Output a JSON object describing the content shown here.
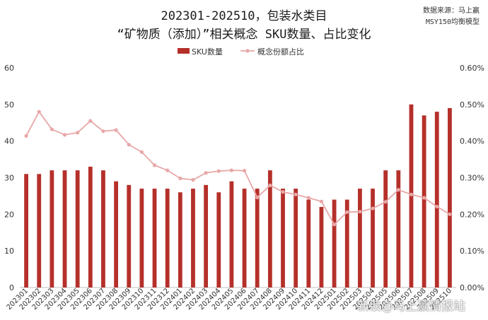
{
  "header": {
    "title_line1": "202301-202510，包装水类目",
    "title_line2": "“矿物质（添加）”相关概念 SKU数量、占比变化",
    "source_line1": "数据来源：马上赢",
    "source_line2": "MSY150均衡模型"
  },
  "watermark": "新浪@马上赢情报站",
  "chart_data": {
    "type": "bar",
    "categories": [
      "202301",
      "202302",
      "202303",
      "202304",
      "202305",
      "202306",
      "202307",
      "202308",
      "202309",
      "202310",
      "202311",
      "202312",
      "202401",
      "202402",
      "202403",
      "202404",
      "202405",
      "202406",
      "202407",
      "202408",
      "202409",
      "202410",
      "202411",
      "202412",
      "202501",
      "202502",
      "202503",
      "202504",
      "202505",
      "202506",
      "202507",
      "202508",
      "202509",
      "202510"
    ],
    "series": [
      {
        "name": "SKU数量",
        "kind": "bar",
        "axis": "left",
        "color": "#b5302a",
        "values": [
          31,
          31,
          32,
          32,
          32,
          33,
          32,
          29,
          28,
          27,
          27,
          27,
          26,
          27,
          28,
          26,
          29,
          27,
          27,
          32,
          27,
          27,
          24,
          22,
          24,
          24,
          27,
          27,
          32,
          32,
          50,
          47,
          48,
          49
        ]
      },
      {
        "name": "概念份额占比",
        "kind": "line",
        "axis": "right",
        "color": "#e8a7a7",
        "values": [
          0.414,
          0.48,
          0.432,
          0.417,
          0.423,
          0.455,
          0.427,
          0.43,
          0.39,
          0.37,
          0.334,
          0.32,
          0.298,
          0.294,
          0.313,
          0.318,
          0.32,
          0.319,
          0.246,
          0.279,
          0.261,
          0.254,
          0.245,
          0.235,
          0.172,
          0.206,
          0.207,
          0.216,
          0.234,
          0.267,
          0.254,
          0.245,
          0.221,
          0.2
        ]
      }
    ],
    "y_left": {
      "min": 0,
      "max": 60,
      "ticks": [
        "0",
        "10",
        "20",
        "30",
        "40",
        "50",
        "60"
      ]
    },
    "y_right": {
      "min": 0,
      "max": 0.6,
      "ticks": [
        "0.00%",
        "0.10%",
        "0.20%",
        "0.30%",
        "0.40%",
        "0.50%",
        "0.60%"
      ]
    },
    "grid": false,
    "legend_position": "top"
  }
}
